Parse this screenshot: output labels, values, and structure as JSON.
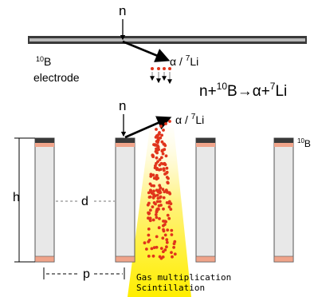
{
  "top": {
    "neutron_label": "n",
    "product_label": "α / ",
    "product_li": "Li",
    "product_li_mass": "7",
    "boron_mass": "10",
    "boron_symbol": "B",
    "electrode_label": "electrode"
  },
  "reaction": {
    "n": "n+",
    "b_mass": "10",
    "b": "B→α+",
    "li_mass": "7",
    "li": "Li"
  },
  "bottom": {
    "neutron_label": "n",
    "product_label": "α / ",
    "product_li": "Li",
    "product_li_mass": "7",
    "right_label_mass": "10",
    "right_label": "B",
    "h_label": "h",
    "d_label": "d",
    "p_label": "p",
    "gas_text": "Gas multiplication",
    "scint_text": "Scintillation"
  },
  "colors": {
    "electrode_dark": "#3a3a3a",
    "electrode_light": "#d9d9d9",
    "cap_pink": "#f0a48a",
    "dot_red": "#e0341b",
    "glow_yellow": "#ffee00"
  }
}
